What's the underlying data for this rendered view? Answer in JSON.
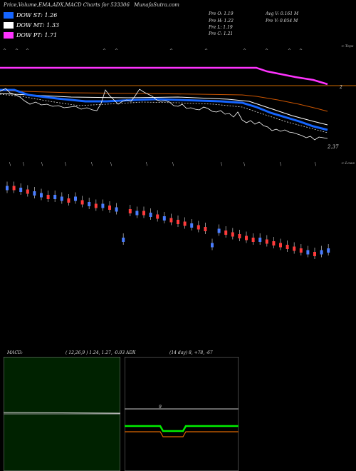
{
  "header": {
    "title": "Price,Volume,EMA,ADX,MACD Charts for 533306",
    "site": "MunafaSutra.com"
  },
  "legend": [
    {
      "label": "DOW ST: 1.26",
      "color": "#1565ff"
    },
    {
      "label": "DOW MT: 1.33",
      "color": "#ffffff"
    },
    {
      "label": "DOW PT: 1.71",
      "color": "#ff33ff"
    }
  ],
  "ohlc": {
    "open": "Pre   O: 1.19",
    "high": "Pre   H: 1.22",
    "low": "Pre   L: 1.19",
    "close": "Pre   C: 1.21",
    "avg_volume": "Avg V: 0.161  M",
    "prev_volume": "Pre   V: 0.054  M"
  },
  "labels": {
    "tops": "<-Tops",
    "lows": "<-Lows",
    "price_right": "2",
    "last_price": "2.37"
  },
  "macd": {
    "title": "MACD:",
    "params": "( 12,26,9 ) 1.24, 1.27, -0.03"
  },
  "adx": {
    "title": "ADX",
    "params": "(14  day) 8, +78, -67",
    "mid_label": "9"
  },
  "chart_data": {
    "type": "candlestick",
    "candles": [
      [
        1,
        1
      ],
      [
        1,
        -1
      ],
      [
        2,
        1
      ],
      [
        3,
        -1
      ],
      [
        4,
        1
      ],
      [
        5,
        1
      ],
      [
        6,
        -1
      ],
      [
        6,
        1
      ],
      [
        7,
        1
      ],
      [
        8,
        -1
      ],
      [
        7,
        1
      ],
      [
        9,
        -1
      ],
      [
        10,
        1
      ],
      [
        11,
        -1
      ],
      [
        11,
        1
      ],
      [
        12,
        -1
      ],
      [
        13,
        1
      ],
      [
        30,
        1
      ],
      [
        14,
        -1
      ],
      [
        15,
        1
      ],
      [
        15,
        -1
      ],
      [
        16,
        1
      ],
      [
        17,
        -1
      ],
      [
        18,
        1
      ],
      [
        19,
        -1
      ],
      [
        20,
        -1
      ],
      [
        21,
        -1
      ],
      [
        22,
        1
      ],
      [
        23,
        -1
      ],
      [
        24,
        -1
      ],
      [
        33,
        1
      ],
      [
        25,
        1
      ],
      [
        26,
        -1
      ],
      [
        27,
        -1
      ],
      [
        28,
        -1
      ],
      [
        29,
        -1
      ],
      [
        30,
        -1
      ],
      [
        30,
        1
      ],
      [
        31,
        -1
      ],
      [
        32,
        -1
      ],
      [
        33,
        -1
      ],
      [
        34,
        -1
      ],
      [
        35,
        -1
      ],
      [
        36,
        -1
      ],
      [
        37,
        1
      ],
      [
        38,
        -1
      ],
      [
        37,
        1
      ],
      [
        36,
        1
      ]
    ]
  }
}
